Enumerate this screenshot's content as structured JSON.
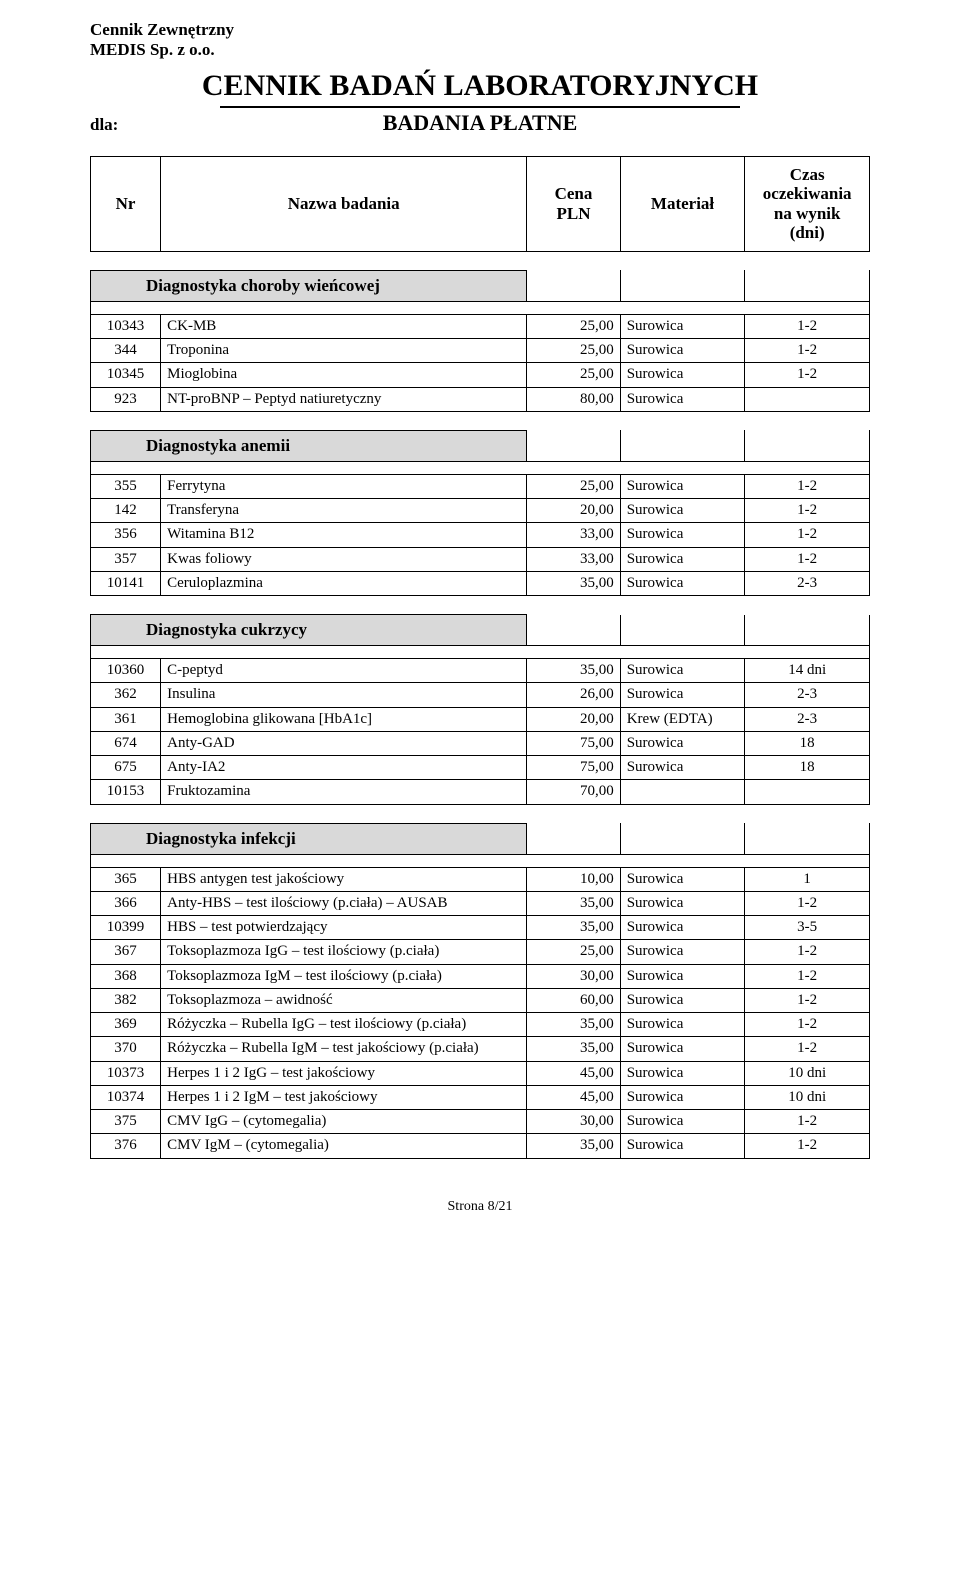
{
  "header": {
    "line1": "Cennik Zewnętrzny",
    "line2": "MEDIS Sp. z o.o.",
    "title": "CENNIK  BADAŃ  LABORATORYJNYCH",
    "dla": "dla:",
    "subtitle": "BADANIA PŁATNE"
  },
  "columns": {
    "nr": "Nr",
    "name": "Nazwa badania",
    "cena": "Cena\nPLN",
    "material": "Materiał",
    "czas": "Czas\noczekiwania\nna wynik\n(dni)"
  },
  "sections": [
    {
      "title": "Diagnostyka choroby wieńcowej",
      "rows": [
        {
          "nr": "10343",
          "name": "CK-MB",
          "cena": "25,00",
          "mat": "Surowica",
          "czas": "1-2"
        },
        {
          "nr": "344",
          "name": "Troponina",
          "cena": "25,00",
          "mat": "Surowica",
          "czas": "1-2"
        },
        {
          "nr": "10345",
          "name": "Mioglobina",
          "cena": "25,00",
          "mat": "Surowica",
          "czas": "1-2"
        },
        {
          "nr": "923",
          "name": "NT-proBNP – Peptyd natiuretyczny",
          "cena": "80,00",
          "mat": "Surowica",
          "czas": ""
        }
      ]
    },
    {
      "title": "Diagnostyka anemii",
      "rows": [
        {
          "nr": "355",
          "name": "Ferrytyna",
          "cena": "25,00",
          "mat": "Surowica",
          "czas": "1-2"
        },
        {
          "nr": "142",
          "name": "Transferyna",
          "cena": "20,00",
          "mat": "Surowica",
          "czas": "1-2"
        },
        {
          "nr": "356",
          "name": "Witamina B12",
          "cena": "33,00",
          "mat": "Surowica",
          "czas": "1-2"
        },
        {
          "nr": "357",
          "name": "Kwas foliowy",
          "cena": "33,00",
          "mat": "Surowica",
          "czas": "1-2"
        },
        {
          "nr": "10141",
          "name": "Ceruloplazmina",
          "cena": "35,00",
          "mat": "Surowica",
          "czas": "2-3"
        }
      ]
    },
    {
      "title": "Diagnostyka cukrzycy",
      "rows": [
        {
          "nr": "10360",
          "name": "C-peptyd",
          "cena": "35,00",
          "mat": "Surowica",
          "czas": "14 dni"
        },
        {
          "nr": "362",
          "name": "Insulina",
          "cena": "26,00",
          "mat": "Surowica",
          "czas": "2-3"
        },
        {
          "nr": "361",
          "name": "Hemoglobina glikowana [HbA1c]",
          "cena": "20,00",
          "mat": "Krew (EDTA)",
          "czas": "2-3"
        },
        {
          "nr": "674",
          "name": "Anty-GAD",
          "cena": "75,00",
          "mat": "Surowica",
          "czas": "18"
        },
        {
          "nr": "675",
          "name": "Anty-IA2",
          "cena": "75,00",
          "mat": "Surowica",
          "czas": "18"
        },
        {
          "nr": "10153",
          "name": "Fruktozamina",
          "cena": "70,00",
          "mat": "",
          "czas": ""
        }
      ]
    },
    {
      "title": "Diagnostyka infekcji",
      "rows": [
        {
          "nr": "365",
          "name": "HBS  antygen  test jakościowy",
          "cena": "10,00",
          "mat": "Surowica",
          "czas": "1"
        },
        {
          "nr": "366",
          "name": "Anty-HBS – test ilościowy (p.ciała) – AUSAB",
          "cena": "35,00",
          "mat": "Surowica",
          "czas": "1-2"
        },
        {
          "nr": "10399",
          "name": "HBS – test potwierdzający",
          "cena": "35,00",
          "mat": "Surowica",
          "czas": "3-5"
        },
        {
          "nr": "367",
          "name": "Toksoplazmoza  IgG – test ilościowy  (p.ciała)",
          "cena": "25,00",
          "mat": "Surowica",
          "czas": "1-2"
        },
        {
          "nr": "368",
          "name": "Toksoplazmoza  IgM – test ilościowy  (p.ciała)",
          "cena": "30,00",
          "mat": "Surowica",
          "czas": "1-2"
        },
        {
          "nr": "382",
          "name": "Toksoplazmoza – awidność",
          "cena": "60,00",
          "mat": "Surowica",
          "czas": "1-2"
        },
        {
          "nr": "369",
          "name": "Różyczka – Rubella  IgG – test ilościowy  (p.ciała)",
          "cena": "35,00",
          "mat": "Surowica",
          "czas": "1-2"
        },
        {
          "nr": "370",
          "name": "Różyczka – Rubella  IgM – test jakościowy (p.ciała)",
          "cena": "35,00",
          "mat": "Surowica",
          "czas": "1-2"
        },
        {
          "nr": "10373",
          "name": "Herpes 1 i 2  IgG – test jakościowy",
          "cena": "45,00",
          "mat": "Surowica",
          "czas": "10 dni"
        },
        {
          "nr": "10374",
          "name": "Herpes 1 i 2  IgM – test jakościowy",
          "cena": "45,00",
          "mat": "Surowica",
          "czas": "10 dni"
        },
        {
          "nr": "375",
          "name": "CMV IgG –  (cytomegalia)",
          "cena": "30,00",
          "mat": "Surowica",
          "czas": "1-2"
        },
        {
          "nr": "376",
          "name": "CMV IgM –  (cytomegalia)",
          "cena": "35,00",
          "mat": "Surowica",
          "czas": "1-2"
        }
      ]
    }
  ],
  "footer": "Strona  8/21"
}
